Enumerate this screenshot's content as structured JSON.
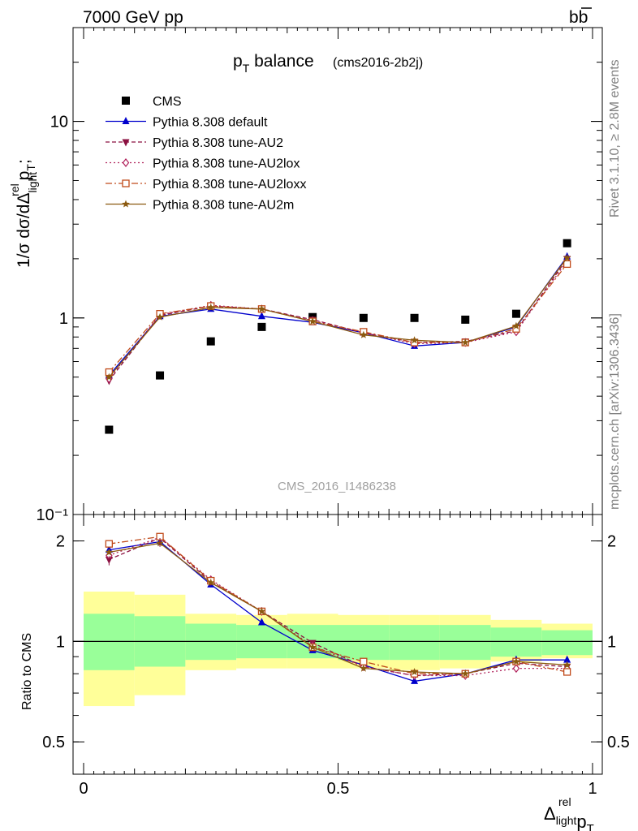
{
  "header": {
    "left": "7000 GeV pp",
    "right": "b",
    "right_bar": "b"
  },
  "side_text": {
    "rivet": "Rivet 3.1.10, ≥ 2.8M events",
    "mcplots": "mcplots.cern.ch [arXiv:1306.3436]"
  },
  "plot_title": {
    "main": "p",
    "main_sub": "T",
    "main_rest": " balance",
    "small": "(cms2016-2b2j)"
  },
  "watermark": "CMS_2016_I1486238",
  "ylabel_top": "1/σ dσ/dΔ",
  "ylabel_bottom": "Ratio to CMS",
  "xlabel": {
    "delta": "Δ",
    "sup": "rel",
    "sub": "light",
    "p": "p",
    "psub": "T"
  },
  "legend": [
    {
      "key": "cms",
      "label": "CMS"
    },
    {
      "key": "default",
      "label": "Pythia 8.308 default"
    },
    {
      "key": "au2",
      "label": "Pythia 8.308 tune-AU2"
    },
    {
      "key": "au2lox",
      "label": "Pythia 8.308 tune-AU2lox"
    },
    {
      "key": "au2loxx",
      "label": "Pythia 8.308 tune-AU2loxx"
    },
    {
      "key": "au2m",
      "label": "Pythia 8.308 tune-AU2m"
    }
  ],
  "colors": {
    "cms": "#000000",
    "default": "#0000cc",
    "au2": "#8b1040",
    "au2lox": "#b0205a",
    "au2loxx": "#c04a1a",
    "au2m": "#8b5a10",
    "band_inner": "#99ff99",
    "band_outer": "#ffff99"
  },
  "chart_data": [
    {
      "type": "scatter",
      "yscale": "log",
      "xlim": [
        0,
        1
      ],
      "ylim": [
        0.1,
        30
      ],
      "yticks": [
        {
          "v": 0.1,
          "t": "10⁻¹"
        },
        {
          "v": 1,
          "t": "1"
        },
        {
          "v": 10,
          "t": "10"
        }
      ],
      "x": [
        0.05,
        0.15,
        0.25,
        0.35,
        0.45,
        0.55,
        0.65,
        0.75,
        0.85,
        0.95
      ],
      "series": [
        {
          "name": "CMS",
          "key": "cms",
          "values": [
            0.27,
            0.51,
            0.76,
            0.9,
            1.01,
            1.0,
            1.0,
            0.98,
            1.05,
            2.4
          ]
        },
        {
          "name": "Pythia 8.308 default",
          "key": "default",
          "values": [
            0.51,
            1.02,
            1.11,
            1.02,
            0.95,
            0.84,
            0.72,
            0.75,
            0.9,
            2.05
          ]
        },
        {
          "name": "Pythia 8.308 tune-AU2",
          "key": "au2",
          "values": [
            0.48,
            1.03,
            1.15,
            1.11,
            0.98,
            0.84,
            0.75,
            0.76,
            0.86,
            2.0
          ]
        },
        {
          "name": "Pythia 8.308 tune-AU2lox",
          "key": "au2lox",
          "values": [
            0.49,
            1.04,
            1.16,
            1.11,
            0.97,
            0.84,
            0.74,
            0.75,
            0.85,
            1.95
          ]
        },
        {
          "name": "Pythia 8.308 tune-AU2loxx",
          "key": "au2loxx",
          "values": [
            0.53,
            1.05,
            1.15,
            1.11,
            0.96,
            0.85,
            0.75,
            0.75,
            0.88,
            1.88
          ]
        },
        {
          "name": "Pythia 8.308 tune-AU2m",
          "key": "au2m",
          "values": [
            0.5,
            1.01,
            1.13,
            1.11,
            0.96,
            0.82,
            0.77,
            0.75,
            0.91,
            2.02
          ]
        }
      ]
    },
    {
      "type": "line",
      "yscale": "log",
      "xlim": [
        0,
        1
      ],
      "ylim": [
        0.4,
        2.4
      ],
      "xticks": [
        {
          "v": 0,
          "t": "0"
        },
        {
          "v": 0.5,
          "t": "0.5"
        },
        {
          "v": 1,
          "t": "1"
        }
      ],
      "yticks": [
        {
          "v": 0.5,
          "t": "0.5"
        },
        {
          "v": 1,
          "t": "1"
        },
        {
          "v": 2,
          "t": "2"
        }
      ],
      "x": [
        0.05,
        0.15,
        0.25,
        0.35,
        0.45,
        0.55,
        0.65,
        0.75,
        0.85,
        0.95
      ],
      "bands": {
        "edges": [
          0,
          0.1,
          0.2,
          0.3,
          0.4,
          0.5,
          0.6,
          0.7,
          0.8,
          0.9,
          1.0
        ],
        "inner_lo": [
          0.82,
          0.84,
          0.88,
          0.89,
          0.89,
          0.88,
          0.88,
          0.88,
          0.9,
          0.91
        ],
        "inner_hi": [
          1.21,
          1.19,
          1.13,
          1.12,
          1.12,
          1.12,
          1.12,
          1.12,
          1.1,
          1.08
        ],
        "outer_lo": [
          0.64,
          0.69,
          0.82,
          0.83,
          0.83,
          0.83,
          0.82,
          0.83,
          0.87,
          0.89
        ],
        "outer_hi": [
          1.41,
          1.38,
          1.21,
          1.2,
          1.21,
          1.2,
          1.2,
          1.2,
          1.16,
          1.13
        ]
      },
      "series": [
        {
          "name": "Pythia 8.308 default",
          "key": "default",
          "values": [
            1.88,
            1.99,
            1.48,
            1.14,
            0.94,
            0.85,
            0.76,
            0.8,
            0.88,
            0.88
          ]
        },
        {
          "name": "Pythia 8.308 tune-AU2",
          "key": "au2",
          "values": [
            1.76,
            2.04,
            1.51,
            1.23,
            0.99,
            0.84,
            0.79,
            0.8,
            0.86,
            0.84
          ]
        },
        {
          "name": "Pythia 8.308 tune-AU2lox",
          "key": "au2lox",
          "values": [
            1.81,
            2.05,
            1.53,
            1.23,
            0.97,
            0.84,
            0.79,
            0.79,
            0.83,
            0.83
          ]
        },
        {
          "name": "Pythia 8.308 tune-AU2loxx",
          "key": "au2loxx",
          "values": [
            1.96,
            2.06,
            1.52,
            1.23,
            0.96,
            0.87,
            0.8,
            0.8,
            0.87,
            0.81
          ]
        },
        {
          "name": "Pythia 8.308 tune-AU2m",
          "key": "au2m",
          "values": [
            1.85,
            1.97,
            1.5,
            1.23,
            0.96,
            0.83,
            0.81,
            0.8,
            0.87,
            0.85
          ]
        }
      ]
    }
  ]
}
